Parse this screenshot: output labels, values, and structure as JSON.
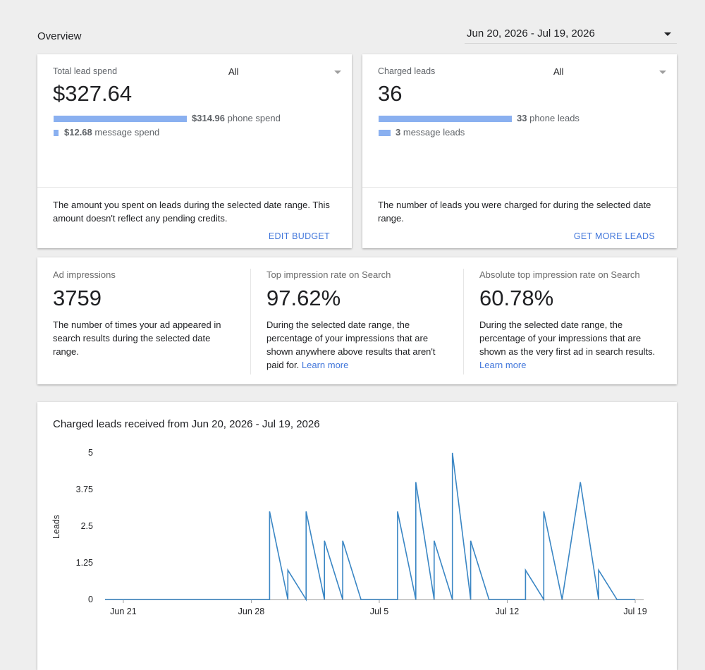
{
  "header": {
    "title": "Overview",
    "date_range": "Jun 20, 2026 - Jul 19, 2026"
  },
  "spend_card": {
    "label": "Total lead spend",
    "filter": "All",
    "value": "$327.64",
    "phone_amount": "$314.96",
    "phone_label": "phone spend",
    "message_amount": "$12.68",
    "message_label": "message spend",
    "description": "The amount you spent on leads during the selected date range. This amount doesn't reflect any pending credits.",
    "action": "EDIT BUDGET"
  },
  "leads_card": {
    "label": "Charged leads",
    "filter": "All",
    "value": "36",
    "phone_amount": "33",
    "phone_label": "phone leads",
    "message_amount": "3",
    "message_label": "message leads",
    "description": "The number of leads you were charged for during the selected date range.",
    "action": "GET MORE LEADS"
  },
  "metrics": [
    {
      "label": "Ad impressions",
      "value": "3759",
      "description": "The number of times your ad appeared in search results during the selected date range.",
      "link": ""
    },
    {
      "label": "Top impression rate on Search",
      "value": "97.62%",
      "description": "During the selected date range, the percentage of your impressions that are shown anywhere above results that aren't paid for.",
      "link": "Learn more"
    },
    {
      "label": "Absolute top impression rate on Search",
      "value": "60.78%",
      "description": "During the selected date range, the percentage of your impressions that are shown as the very first ad in search results.",
      "link": "Learn more"
    }
  ],
  "colors": {
    "accent": "#4277db",
    "bar": "#8ab0f0",
    "line": "#3a86c4"
  },
  "chart_data": {
    "type": "line",
    "title": "Charged leads received from Jun 20, 2026 - Jul 19, 2026",
    "ylabel": "Leads",
    "xlabel": "",
    "ylim": [
      0,
      5
    ],
    "y_ticks": [
      "0",
      "1.25",
      "2.5",
      "3.75",
      "5"
    ],
    "x_tick_labels": [
      "Jun 21",
      "Jun 28",
      "Jul 5",
      "Jul 12",
      "Jul 19"
    ],
    "x_tick_index": [
      1,
      8,
      15,
      22,
      29
    ],
    "grid": false,
    "series": [
      {
        "values": [
          0,
          0,
          0,
          0,
          0,
          0,
          0,
          0,
          0,
          0,
          3,
          0,
          1,
          0,
          3,
          0,
          2,
          0,
          2,
          0,
          0,
          0,
          0,
          0,
          3,
          0,
          4,
          0,
          2,
          0,
          5,
          0,
          2,
          0,
          0,
          0,
          0,
          0,
          0,
          0,
          1,
          0,
          3,
          0,
          0,
          0,
          0,
          0,
          4,
          0,
          1,
          0,
          0,
          0,
          0,
          0
        ],
        "x": [
          "Jun 20",
          "Jun 21",
          "Jun 22",
          "Jun 23",
          "Jun 24",
          "Jun 25",
          "Jun 26",
          "Jun 27",
          "Jun 28",
          "Jun 29",
          "Jun 29",
          "Jun 30",
          "Jun 30",
          "Jul 1",
          "Jul 1",
          "Jul 2",
          "Jul 2",
          "Jul 3",
          "Jul 3",
          "Jul 4",
          "Jul 5",
          "Jul 6",
          "Jul 6",
          "Jul 6",
          "Jul 6",
          "Jul 7",
          "Jul 7",
          "Jul 8",
          "Jul 8",
          "Jul 9",
          "Jul 9",
          "Jul 10",
          "Jul 10",
          "Jul 11",
          "Jul 12",
          "Jul 13",
          "Jul 13",
          "Jul 13",
          "Jul 13",
          "Jul 13",
          "Jul 13",
          "Jul 14",
          "Jul 14",
          "Jul 15",
          "Jul 15",
          "Jul 15",
          "Jul 15",
          "Jul 15",
          "Jul 16",
          "Jul 17",
          "Jul 17",
          "Jul 18",
          "Jul 19",
          "Jul 19",
          "Jul 19",
          "Jul 19"
        ]
      }
    ]
  }
}
